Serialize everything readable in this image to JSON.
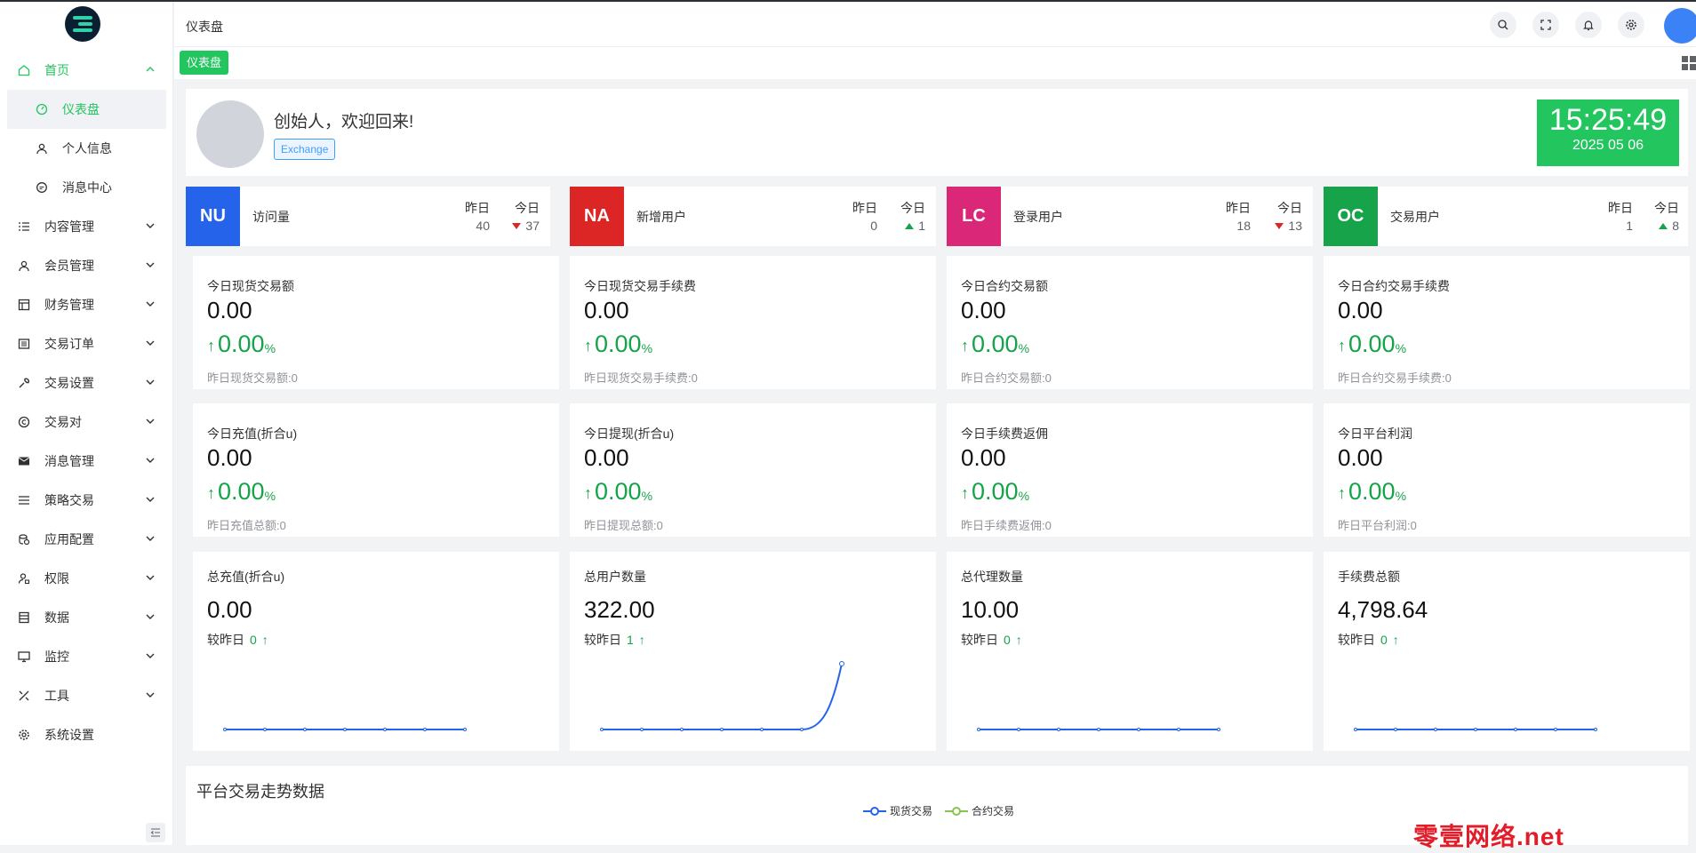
{
  "header": {
    "title": "仪表盘"
  },
  "tabs": [
    {
      "label": "仪表盘"
    }
  ],
  "sidebar": {
    "items": [
      {
        "label": "首页",
        "icon": "home-icon"
      },
      {
        "label": "仪表盘",
        "icon": "dashboard-icon"
      },
      {
        "label": "个人信息",
        "icon": "user-icon"
      },
      {
        "label": "消息中心",
        "icon": "message-icon"
      },
      {
        "label": "内容管理",
        "icon": "list-icon"
      },
      {
        "label": "会员管理",
        "icon": "member-icon"
      },
      {
        "label": "财务管理",
        "icon": "finance-icon"
      },
      {
        "label": "交易订单",
        "icon": "order-icon"
      },
      {
        "label": "交易设置",
        "icon": "wrench-icon"
      },
      {
        "label": "交易对",
        "icon": "copyright-icon"
      },
      {
        "label": "消息管理",
        "icon": "mail-icon"
      },
      {
        "label": "策略交易",
        "icon": "menu-icon"
      },
      {
        "label": "应用配置",
        "icon": "coins-icon"
      },
      {
        "label": "权限",
        "icon": "user-lock-icon"
      },
      {
        "label": "数据",
        "icon": "database-icon"
      },
      {
        "label": "监控",
        "icon": "monitor-icon"
      },
      {
        "label": "工具",
        "icon": "tools-icon"
      },
      {
        "label": "系统设置",
        "icon": "gear-icon"
      }
    ]
  },
  "welcome": {
    "greeting": "创始人，欢迎回来!",
    "badge": "Exchange"
  },
  "clock": {
    "time": "15:25:49",
    "date": "2025 05 06"
  },
  "stats": [
    {
      "code": "NU",
      "color": "#2563eb",
      "name": "访问量",
      "yesterday_label": "昨日",
      "today_label": "今日",
      "yesterday": "40",
      "today": "37",
      "trend": "down"
    },
    {
      "code": "NA",
      "color": "#dc2626",
      "name": "新增用户",
      "yesterday_label": "昨日",
      "today_label": "今日",
      "yesterday": "0",
      "today": "1",
      "trend": "up"
    },
    {
      "code": "LC",
      "color": "#db2777",
      "name": "登录用户",
      "yesterday_label": "昨日",
      "today_label": "今日",
      "yesterday": "18",
      "today": "13",
      "trend": "down"
    },
    {
      "code": "OC",
      "color": "#16a34a",
      "name": "交易用户",
      "yesterday_label": "昨日",
      "today_label": "今日",
      "yesterday": "1",
      "today": "8",
      "trend": "up"
    }
  ],
  "metrics": [
    {
      "label": "今日现货交易额",
      "value": "0.00",
      "pct": "0.00",
      "unit": "%",
      "footer": "昨日现货交易额:0"
    },
    {
      "label": "今日现货交易手续费",
      "value": "0.00",
      "pct": "0.00",
      "unit": "%",
      "footer": "昨日现货交易手续费:0"
    },
    {
      "label": "今日合约交易额",
      "value": "0.00",
      "pct": "0.00",
      "unit": "%",
      "footer": "昨日合约交易额:0"
    },
    {
      "label": "今日合约交易手续费",
      "value": "0.00",
      "pct": "0.00",
      "unit": "%",
      "footer": "昨日合约交易手续费:0"
    },
    {
      "label": "今日充值(折合u)",
      "value": "0.00",
      "pct": "0.00",
      "unit": "%",
      "footer": "昨日充值总额:0"
    },
    {
      "label": "今日提现(折合u)",
      "value": "0.00",
      "pct": "0.00",
      "unit": "%",
      "footer": "昨日提现总额:0"
    },
    {
      "label": "今日手续费返佣",
      "value": "0.00",
      "pct": "0.00",
      "unit": "%",
      "footer": "昨日手续费返佣:0"
    },
    {
      "label": "今日平台利润",
      "value": "0.00",
      "pct": "0.00",
      "unit": "%",
      "footer": "昨日平台利润:0"
    }
  ],
  "totals": [
    {
      "label": "总充值(折合u)",
      "value": "0.00",
      "compare_label": "较昨日",
      "compare_value": "0",
      "chart_values": [
        0,
        0,
        0,
        0,
        0,
        0,
        0
      ]
    },
    {
      "label": "总用户数量",
      "value": "322.00",
      "compare_label": "较昨日",
      "compare_value": "1",
      "chart_values": [
        0,
        0,
        0,
        0,
        0,
        0,
        1
      ]
    },
    {
      "label": "总代理数量",
      "value": "10.00",
      "compare_label": "较昨日",
      "compare_value": "0",
      "chart_values": [
        0,
        0,
        0,
        0,
        0,
        0,
        0
      ]
    },
    {
      "label": "手续费总额",
      "value": "4,798.64",
      "compare_label": "较昨日",
      "compare_value": "0",
      "chart_values": [
        0,
        0,
        0,
        0,
        0,
        0,
        0
      ]
    }
  ],
  "trend": {
    "title": "平台交易走势数据",
    "legend": [
      {
        "label": "现货交易",
        "color": "#2563eb"
      },
      {
        "label": "合约交易",
        "color": "#86c44c"
      }
    ]
  },
  "watermark": "零壹网络.net",
  "colors": {
    "accent": "#22c55e",
    "up": "#16a34a",
    "down": "#dc2626",
    "line": "#2563eb"
  }
}
